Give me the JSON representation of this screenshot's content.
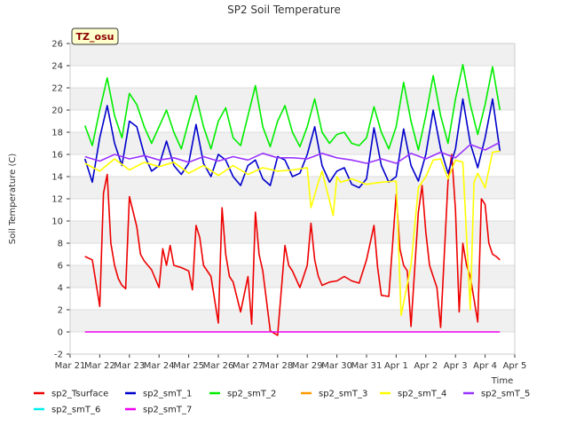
{
  "chart_data": {
    "type": "line",
    "title": "SP2 Soil Temperature",
    "xlabel": "Time",
    "ylabel": "Soil Temperature (C)",
    "ylim": [
      -2,
      26
    ],
    "xlim": [
      "2024-03-21",
      "2024-04-05"
    ],
    "grid": "horizontal bands",
    "legend_position": "bottom",
    "annotation": "TZ_osu",
    "yticks": [
      "-2",
      "0",
      "2",
      "4",
      "6",
      "8",
      "10",
      "12",
      "14",
      "16",
      "18",
      "20",
      "22",
      "24",
      "26"
    ],
    "xtick_labels": [
      "Mar 21",
      "Mar 22",
      "Mar 23",
      "Mar 24",
      "Mar 25",
      "Mar 26",
      "Mar 27",
      "Mar 28",
      "Mar 29",
      "Mar 30",
      "Mar 31",
      "Apr 1",
      "Apr 2",
      "Apr 3",
      "Apr 4",
      "Apr 5"
    ],
    "series": [
      {
        "name": "sp2_Tsurface",
        "color": "#ee0000",
        "x": [
          "2024-03-21 12:00",
          "2024-03-21 18:00",
          "2024-03-22 00:00",
          "2024-03-22 03:00",
          "2024-03-22 06:00",
          "2024-03-22 09:00",
          "2024-03-22 12:00",
          "2024-03-22 15:00",
          "2024-03-22 18:00",
          "2024-03-22 21:00",
          "2024-03-23 00:00",
          "2024-03-23 06:00",
          "2024-03-23 09:00",
          "2024-03-23 12:00",
          "2024-03-23 18:00",
          "2024-03-24 00:00",
          "2024-03-24 03:00",
          "2024-03-24 06:00",
          "2024-03-24 09:00",
          "2024-03-24 12:00",
          "2024-03-24 18:00",
          "2024-03-25 00:00",
          "2024-03-25 03:00",
          "2024-03-25 06:00",
          "2024-03-25 09:00",
          "2024-03-25 12:00",
          "2024-03-25 18:00",
          "2024-03-26 00:00",
          "2024-03-26 03:00",
          "2024-03-26 06:00",
          "2024-03-26 09:00",
          "2024-03-26 12:00",
          "2024-03-26 18:00",
          "2024-03-27 00:00",
          "2024-03-27 03:00",
          "2024-03-27 06:00",
          "2024-03-27 09:00",
          "2024-03-27 12:00",
          "2024-03-27 18:00",
          "2024-03-28 00:00",
          "2024-03-28 06:00",
          "2024-03-28 09:00",
          "2024-03-28 12:00",
          "2024-03-28 18:00",
          "2024-03-29 00:00",
          "2024-03-29 03:00",
          "2024-03-29 06:00",
          "2024-03-29 09:00",
          "2024-03-29 12:00",
          "2024-03-29 18:00",
          "2024-03-30 00:00",
          "2024-03-30 06:00",
          "2024-03-30 12:00",
          "2024-03-30 18:00",
          "2024-03-31 00:00",
          "2024-03-31 06:00",
          "2024-03-31 09:00",
          "2024-03-31 12:00",
          "2024-03-31 18:00",
          "2024-04-01 00:00",
          "2024-04-01 03:00",
          "2024-04-01 06:00",
          "2024-04-01 09:00",
          "2024-04-01 12:00",
          "2024-04-01 18:00",
          "2024-04-01 21:00",
          "2024-04-02 00:00",
          "2024-04-02 03:00",
          "2024-04-02 06:00",
          "2024-04-02 09:00",
          "2024-04-02 12:00",
          "2024-04-02 18:00",
          "2024-04-02 21:00",
          "2024-04-03 00:00",
          "2024-04-03 03:00",
          "2024-04-03 06:00",
          "2024-04-03 09:00",
          "2024-04-03 12:00",
          "2024-04-03 18:00",
          "2024-04-03 21:00",
          "2024-04-04 00:00",
          "2024-04-04 03:00",
          "2024-04-04 06:00",
          "2024-04-04 09:00",
          "2024-04-04 12:00"
        ],
        "values": [
          6.8,
          6.5,
          2.3,
          12.5,
          14.2,
          8.0,
          6.0,
          4.8,
          4.2,
          3.9,
          12.2,
          9.5,
          7.0,
          6.4,
          5.6,
          4.0,
          7.5,
          6.0,
          7.8,
          6.0,
          5.8,
          5.5,
          3.8,
          9.6,
          8.5,
          6.0,
          5.0,
          0.8,
          11.2,
          7.0,
          5.0,
          4.5,
          1.8,
          5.0,
          0.7,
          10.8,
          7.0,
          5.5,
          0.1,
          -0.3,
          7.8,
          6.0,
          5.5,
          4.0,
          6.0,
          9.8,
          6.5,
          5.0,
          4.2,
          4.5,
          4.6,
          5.0,
          4.6,
          4.4,
          6.5,
          9.6,
          5.8,
          3.3,
          3.2,
          12.4,
          7.5,
          6.0,
          5.5,
          0.5,
          10.8,
          13.2,
          9.0,
          6.0,
          5.0,
          4.0,
          0.4,
          13.6,
          16.0,
          11.0,
          1.8,
          8.0,
          6.0,
          5.0,
          0.9,
          12.0,
          11.5,
          8.0,
          7.0,
          6.8,
          6.5
        ]
      },
      {
        "name": "sp2_smT_1",
        "color": "#0000cc",
        "x": [
          "2024-03-21 12:00",
          "2024-03-21 18:00",
          "2024-03-22 00:00",
          "2024-03-22 06:00",
          "2024-03-22 12:00",
          "2024-03-22 18:00",
          "2024-03-23 00:00",
          "2024-03-23 06:00",
          "2024-03-23 12:00",
          "2024-03-23 18:00",
          "2024-03-24 00:00",
          "2024-03-24 06:00",
          "2024-03-24 12:00",
          "2024-03-24 18:00",
          "2024-03-25 00:00",
          "2024-03-25 06:00",
          "2024-03-25 12:00",
          "2024-03-25 18:00",
          "2024-03-26 00:00",
          "2024-03-26 06:00",
          "2024-03-26 12:00",
          "2024-03-26 18:00",
          "2024-03-27 00:00",
          "2024-03-27 06:00",
          "2024-03-27 12:00",
          "2024-03-27 18:00",
          "2024-03-28 00:00",
          "2024-03-28 06:00",
          "2024-03-28 12:00",
          "2024-03-28 18:00",
          "2024-03-29 00:00",
          "2024-03-29 06:00",
          "2024-03-29 12:00",
          "2024-03-29 18:00",
          "2024-03-30 00:00",
          "2024-03-30 06:00",
          "2024-03-30 12:00",
          "2024-03-30 18:00",
          "2024-03-31 00:00",
          "2024-03-31 06:00",
          "2024-03-31 12:00",
          "2024-03-31 18:00",
          "2024-04-01 00:00",
          "2024-04-01 06:00",
          "2024-04-01 12:00",
          "2024-04-01 18:00",
          "2024-04-02 00:00",
          "2024-04-02 06:00",
          "2024-04-02 12:00",
          "2024-04-02 18:00",
          "2024-04-03 00:00",
          "2024-04-03 06:00",
          "2024-04-03 12:00",
          "2024-04-03 18:00",
          "2024-04-04 00:00",
          "2024-04-04 06:00",
          "2024-04-04 12:00"
        ],
        "values": [
          15.6,
          13.5,
          17.5,
          20.4,
          17.0,
          15.0,
          19.0,
          18.5,
          16.0,
          14.5,
          15.0,
          17.2,
          15.0,
          14.2,
          15.2,
          18.7,
          15.2,
          14.0,
          16.0,
          15.5,
          14.0,
          13.2,
          15.0,
          15.5,
          13.8,
          13.2,
          15.8,
          15.5,
          14.0,
          14.3,
          16.0,
          18.5,
          15.0,
          13.5,
          14.5,
          14.8,
          13.3,
          13.0,
          13.8,
          18.4,
          15.0,
          13.5,
          14.0,
          18.3,
          15.0,
          13.6,
          16.0,
          20.0,
          16.5,
          14.3,
          16.5,
          21.0,
          17.0,
          14.8,
          17.5,
          21.0,
          16.3
        ]
      },
      {
        "name": "sp2_smT_2",
        "color": "#00ee00",
        "x": [
          "2024-03-21 12:00",
          "2024-03-21 18:00",
          "2024-03-22 00:00",
          "2024-03-22 06:00",
          "2024-03-22 12:00",
          "2024-03-22 18:00",
          "2024-03-23 00:00",
          "2024-03-23 06:00",
          "2024-03-23 12:00",
          "2024-03-23 18:00",
          "2024-03-24 00:00",
          "2024-03-24 06:00",
          "2024-03-24 12:00",
          "2024-03-24 18:00",
          "2024-03-25 00:00",
          "2024-03-25 06:00",
          "2024-03-25 12:00",
          "2024-03-25 18:00",
          "2024-03-26 00:00",
          "2024-03-26 06:00",
          "2024-03-26 12:00",
          "2024-03-26 18:00",
          "2024-03-27 00:00",
          "2024-03-27 06:00",
          "2024-03-27 12:00",
          "2024-03-27 18:00",
          "2024-03-28 00:00",
          "2024-03-28 06:00",
          "2024-03-28 12:00",
          "2024-03-28 18:00",
          "2024-03-29 00:00",
          "2024-03-29 06:00",
          "2024-03-29 12:00",
          "2024-03-29 18:00",
          "2024-03-30 00:00",
          "2024-03-30 06:00",
          "2024-03-30 12:00",
          "2024-03-30 18:00",
          "2024-03-31 00:00",
          "2024-03-31 06:00",
          "2024-03-31 12:00",
          "2024-03-31 18:00",
          "2024-04-01 00:00",
          "2024-04-01 06:00",
          "2024-04-01 12:00",
          "2024-04-01 18:00",
          "2024-04-02 00:00",
          "2024-04-02 06:00",
          "2024-04-02 12:00",
          "2024-04-02 18:00",
          "2024-04-03 00:00",
          "2024-04-03 06:00",
          "2024-04-03 12:00",
          "2024-04-03 18:00",
          "2024-04-04 00:00",
          "2024-04-04 06:00",
          "2024-04-04 12:00"
        ],
        "values": [
          18.6,
          16.8,
          20.0,
          22.9,
          19.5,
          17.5,
          21.5,
          20.5,
          18.5,
          17.0,
          18.5,
          20.0,
          18.0,
          16.5,
          19.0,
          21.3,
          18.5,
          16.5,
          19.0,
          20.2,
          17.5,
          16.8,
          19.5,
          22.2,
          18.5,
          16.7,
          19.0,
          20.4,
          18.0,
          16.7,
          18.5,
          21.0,
          18.0,
          17.0,
          17.8,
          18.0,
          17.0,
          16.8,
          17.5,
          20.3,
          18.0,
          16.5,
          18.5,
          22.5,
          19.0,
          16.4,
          19.5,
          23.1,
          19.5,
          17.0,
          21.0,
          24.1,
          20.5,
          17.8,
          20.5,
          23.9,
          20.0
        ]
      },
      {
        "name": "sp2_smT_3",
        "color": "#ff9900",
        "x": [],
        "values": []
      },
      {
        "name": "sp2_smT_4",
        "color": "#ffff00",
        "x": [
          "2024-03-21 12:00",
          "2024-03-22 00:00",
          "2024-03-22 12:00",
          "2024-03-23 00:00",
          "2024-03-23 12:00",
          "2024-03-24 00:00",
          "2024-03-24 12:00",
          "2024-03-25 00:00",
          "2024-03-25 12:00",
          "2024-03-26 00:00",
          "2024-03-26 12:00",
          "2024-03-27 00:00",
          "2024-03-27 12:00",
          "2024-03-28 00:00",
          "2024-03-28 12:00",
          "2024-03-29 00:00",
          "2024-03-29 03:00",
          "2024-03-29 09:00",
          "2024-03-29 12:00",
          "2024-03-29 21:00",
          "2024-03-30 00:00",
          "2024-03-30 03:00",
          "2024-03-30 12:00",
          "2024-03-31 00:00",
          "2024-03-31 12:00",
          "2024-04-01 00:00",
          "2024-04-01 04:00",
          "2024-04-01 12:00",
          "2024-04-01 18:00",
          "2024-04-02 00:00",
          "2024-04-02 06:00",
          "2024-04-02 12:00",
          "2024-04-02 18:00",
          "2024-04-03 00:00",
          "2024-04-03 06:00",
          "2024-04-03 12:00",
          "2024-04-03 15:00",
          "2024-04-03 18:00",
          "2024-04-04 00:00",
          "2024-04-04 06:00",
          "2024-04-04 12:00"
        ],
        "values": [
          15.2,
          14.5,
          15.6,
          14.6,
          15.3,
          14.9,
          15.3,
          14.3,
          15.0,
          14.1,
          15.0,
          14.2,
          14.8,
          14.5,
          14.6,
          14.8,
          11.2,
          13.5,
          14.5,
          10.5,
          14.0,
          13.5,
          13.8,
          13.3,
          13.5,
          13.6,
          1.5,
          6.0,
          13.0,
          14.0,
          15.5,
          15.6,
          13.8,
          15.5,
          15.3,
          2.0,
          13.5,
          14.3,
          13.0,
          16.2,
          16.3
        ]
      },
      {
        "name": "sp2_smT_5",
        "color": "#9933ff",
        "x": [
          "2024-03-21 12:00",
          "2024-03-22 00:00",
          "2024-03-22 12:00",
          "2024-03-23 00:00",
          "2024-03-23 12:00",
          "2024-03-24 00:00",
          "2024-03-24 12:00",
          "2024-03-25 00:00",
          "2024-03-25 12:00",
          "2024-03-26 00:00",
          "2024-03-26 12:00",
          "2024-03-27 00:00",
          "2024-03-27 12:00",
          "2024-03-28 00:00",
          "2024-03-28 12:00",
          "2024-03-29 00:00",
          "2024-03-29 12:00",
          "2024-03-30 00:00",
          "2024-03-30 12:00",
          "2024-03-31 00:00",
          "2024-03-31 12:00",
          "2024-04-01 00:00",
          "2024-04-01 12:00",
          "2024-04-02 00:00",
          "2024-04-02 12:00",
          "2024-04-03 00:00",
          "2024-04-03 12:00",
          "2024-04-04 00:00",
          "2024-04-04 12:00"
        ],
        "values": [
          15.8,
          15.4,
          16.0,
          15.6,
          15.9,
          15.5,
          15.7,
          15.3,
          15.8,
          15.4,
          15.8,
          15.5,
          16.1,
          15.7,
          15.7,
          15.6,
          16.1,
          15.7,
          15.5,
          15.2,
          15.6,
          15.2,
          16.1,
          15.6,
          16.2,
          15.7,
          16.9,
          16.4,
          17.1
        ]
      },
      {
        "name": "sp2_smT_6",
        "color": "#00eeee",
        "x": [],
        "values": []
      },
      {
        "name": "sp2_smT_7",
        "color": "#ee00ee",
        "x": [
          "2024-03-21 12:00",
          "2024-04-04 12:00"
        ],
        "values": [
          0.0,
          0.0
        ]
      }
    ]
  }
}
